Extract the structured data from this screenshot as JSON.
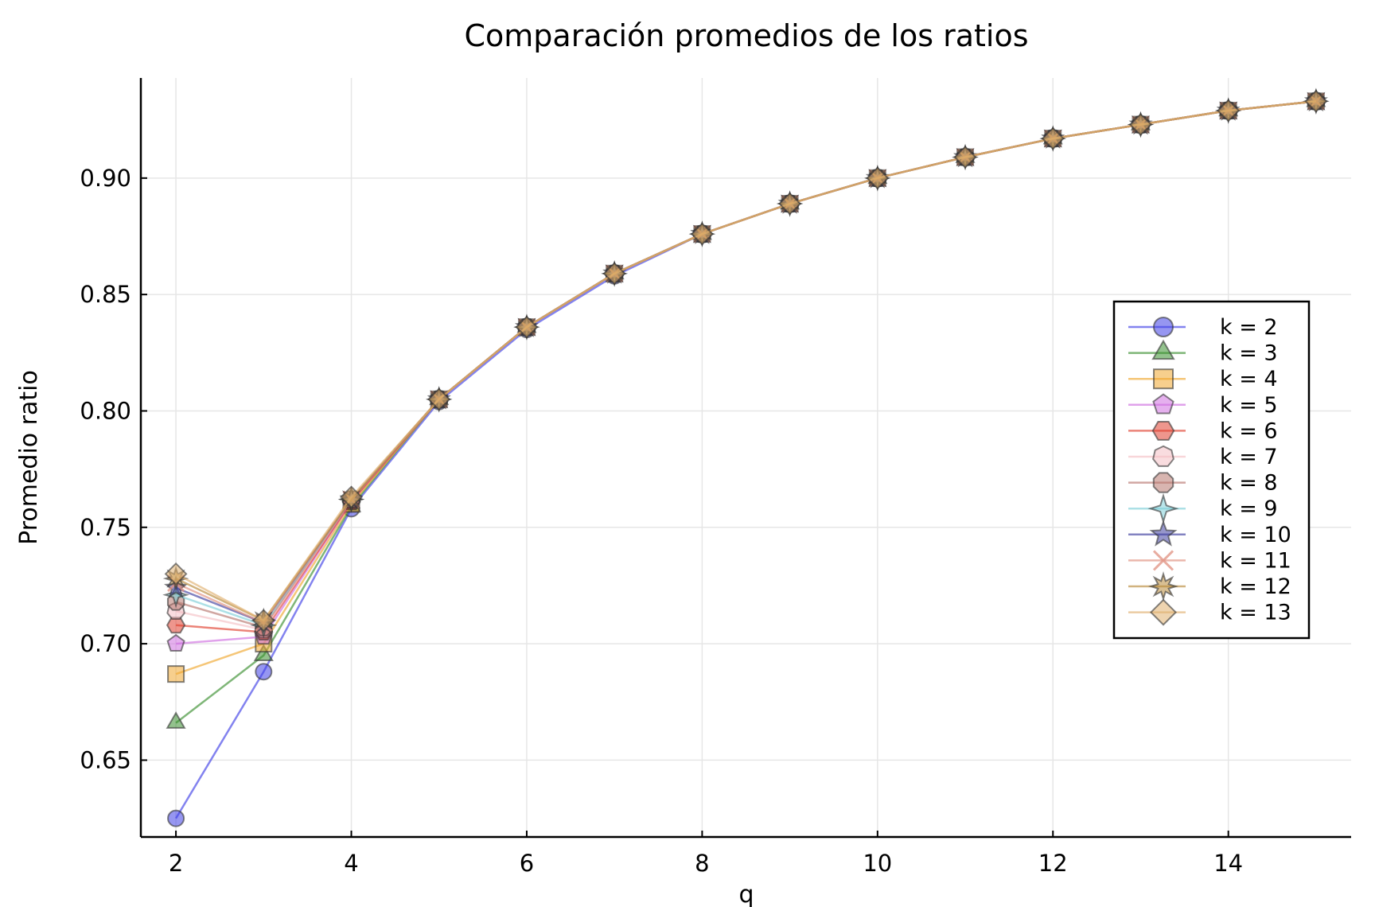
{
  "chart_data": {
    "type": "line",
    "title": "Comparación promedios de los ratios",
    "xlabel": "q",
    "ylabel": "Promedio ratio",
    "xlim": [
      1.6,
      15.4
    ],
    "ylim": [
      0.617,
      0.943
    ],
    "x_ticks": [
      2,
      4,
      6,
      8,
      10,
      12,
      14
    ],
    "x_tick_labels": [
      "2",
      "4",
      "6",
      "8",
      "10",
      "12",
      "14"
    ],
    "y_ticks": [
      0.65,
      0.7,
      0.75,
      0.8,
      0.85,
      0.9
    ],
    "y_tick_labels": [
      "0.65",
      "0.70",
      "0.75",
      "0.80",
      "0.85",
      "0.90"
    ],
    "grid": true,
    "legend_position": "right",
    "x": [
      2,
      3,
      4,
      5,
      6,
      7,
      8,
      9,
      10,
      11,
      12,
      13,
      14,
      15
    ],
    "series": [
      {
        "name": "k = 2",
        "color": "#4040e6",
        "marker": "circle",
        "values": [
          0.625,
          0.688,
          0.758,
          0.804,
          0.835,
          0.858,
          0.876,
          0.889,
          0.9,
          0.909,
          0.917,
          0.923,
          0.929,
          0.933
        ]
      },
      {
        "name": "k = 3",
        "color": "#3a8f2f",
        "marker": "triangle",
        "values": [
          0.666,
          0.695,
          0.759,
          0.805,
          0.836,
          0.859,
          0.876,
          0.889,
          0.9,
          0.909,
          0.917,
          0.923,
          0.929,
          0.933
        ]
      },
      {
        "name": "k = 4",
        "color": "#f0a830",
        "marker": "square",
        "values": [
          0.687,
          0.7,
          0.76,
          0.805,
          0.836,
          0.859,
          0.876,
          0.889,
          0.9,
          0.909,
          0.917,
          0.923,
          0.929,
          0.933
        ]
      },
      {
        "name": "k = 5",
        "color": "#d070e0",
        "marker": "pentagon",
        "values": [
          0.7,
          0.703,
          0.761,
          0.805,
          0.836,
          0.859,
          0.876,
          0.889,
          0.9,
          0.909,
          0.917,
          0.923,
          0.929,
          0.933
        ]
      },
      {
        "name": "k = 6",
        "color": "#e04030",
        "marker": "hexagon",
        "values": [
          0.708,
          0.705,
          0.761,
          0.805,
          0.836,
          0.859,
          0.876,
          0.889,
          0.9,
          0.909,
          0.917,
          0.923,
          0.929,
          0.933
        ]
      },
      {
        "name": "k = 7",
        "color": "#f4c0c4",
        "marker": "heptagon",
        "values": [
          0.714,
          0.706,
          0.762,
          0.805,
          0.836,
          0.859,
          0.876,
          0.889,
          0.9,
          0.909,
          0.917,
          0.923,
          0.929,
          0.933
        ]
      },
      {
        "name": "k = 8",
        "color": "#b87870",
        "marker": "octagon",
        "values": [
          0.718,
          0.707,
          0.762,
          0.805,
          0.836,
          0.859,
          0.876,
          0.889,
          0.9,
          0.909,
          0.917,
          0.923,
          0.929,
          0.933
        ]
      },
      {
        "name": "k = 9",
        "color": "#7fd0d8",
        "marker": "star4",
        "values": [
          0.721,
          0.708,
          0.762,
          0.805,
          0.836,
          0.859,
          0.876,
          0.889,
          0.9,
          0.909,
          0.917,
          0.923,
          0.929,
          0.933
        ]
      },
      {
        "name": "k = 10",
        "color": "#4040a0",
        "marker": "star5",
        "values": [
          0.724,
          0.709,
          0.762,
          0.805,
          0.836,
          0.859,
          0.876,
          0.889,
          0.9,
          0.909,
          0.917,
          0.923,
          0.929,
          0.933
        ]
      },
      {
        "name": "k = 11",
        "color": "#e09080",
        "marker": "cross",
        "values": [
          0.726,
          0.709,
          0.762,
          0.805,
          0.836,
          0.859,
          0.876,
          0.889,
          0.9,
          0.909,
          0.917,
          0.923,
          0.929,
          0.933
        ]
      },
      {
        "name": "k = 12",
        "color": "#b88a3a",
        "marker": "star8",
        "values": [
          0.728,
          0.71,
          0.762,
          0.805,
          0.836,
          0.859,
          0.876,
          0.889,
          0.9,
          0.909,
          0.917,
          0.923,
          0.929,
          0.933
        ]
      },
      {
        "name": "k = 13",
        "color": "#e0b070",
        "marker": "diamond",
        "values": [
          0.73,
          0.71,
          0.763,
          0.805,
          0.836,
          0.859,
          0.876,
          0.889,
          0.9,
          0.909,
          0.917,
          0.923,
          0.929,
          0.933
        ]
      }
    ]
  }
}
